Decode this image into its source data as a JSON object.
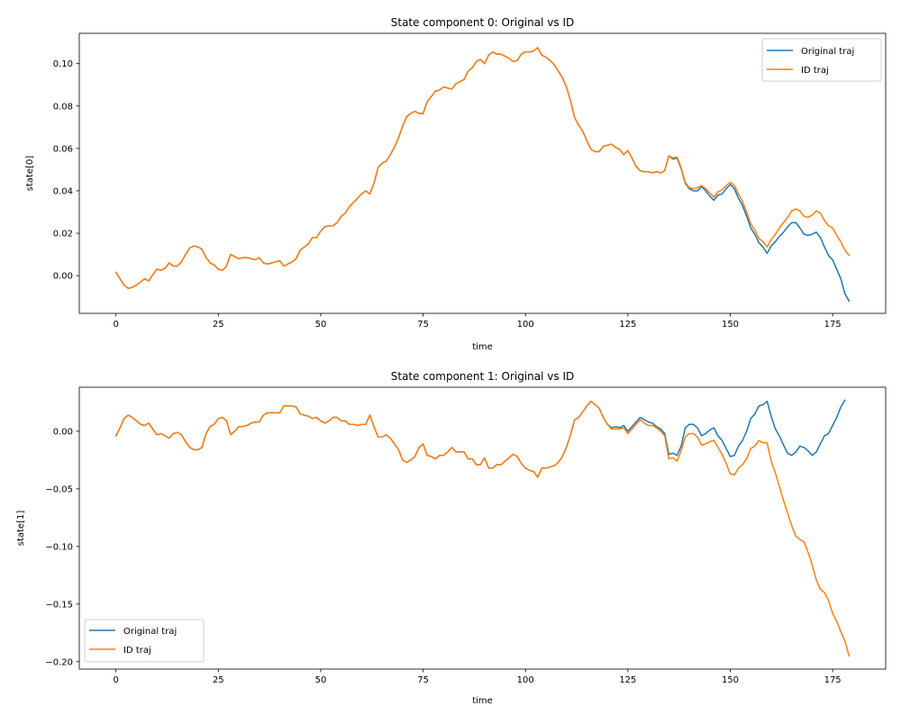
{
  "chart_data": [
    {
      "type": "line",
      "title": "State component 0: Original vs ID",
      "xlabel": "time",
      "ylabel": "state[0]",
      "xlim": [
        -8.95,
        187.95
      ],
      "ylim": [
        -0.0178,
        0.1143
      ],
      "xticks": [
        0,
        25,
        50,
        75,
        100,
        125,
        150,
        175
      ],
      "xtick_labels": [
        "0",
        "25",
        "50",
        "75",
        "100",
        "125",
        "150",
        "175"
      ],
      "yticks": [
        0.0,
        0.02,
        0.04,
        0.06,
        0.08,
        0.1
      ],
      "ytick_labels": [
        "0.00",
        "0.02",
        "0.04",
        "0.06",
        "0.08",
        "0.10"
      ],
      "legend_position": "upper-right",
      "grid": false,
      "x_start": 0,
      "x_step": 1,
      "series": [
        {
          "name": "Original traj",
          "color": "#1f77b4",
          "values": [
            0.0015,
            -0.0015,
            -0.0045,
            -0.006,
            -0.0055,
            -0.0045,
            -0.003,
            -0.0015,
            -0.0025,
            0.0005,
            0.003,
            0.0025,
            0.0035,
            0.006,
            0.0045,
            0.0045,
            0.0065,
            0.01,
            0.013,
            0.014,
            0.0135,
            0.0125,
            0.0085,
            0.006,
            0.005,
            0.003,
            0.0025,
            0.0045,
            0.01,
            0.009,
            0.008,
            0.0085,
            0.0085,
            0.008,
            0.0075,
            0.0085,
            0.006,
            0.0055,
            0.006,
            0.0065,
            0.007,
            0.0045,
            0.0055,
            0.0065,
            0.008,
            0.012,
            0.0135,
            0.015,
            0.018,
            0.018,
            0.021,
            0.023,
            0.0235,
            0.0235,
            0.025,
            0.028,
            0.0295,
            0.0325,
            0.0345,
            0.0365,
            0.0385,
            0.04,
            0.0385,
            0.0435,
            0.051,
            0.053,
            0.054,
            0.057,
            0.0605,
            0.065,
            0.0705,
            0.075,
            0.0765,
            0.0775,
            0.0765,
            0.0765,
            0.082,
            0.0845,
            0.087,
            0.0875,
            0.089,
            0.0885,
            0.088,
            0.0905,
            0.0915,
            0.0925,
            0.0965,
            0.098,
            0.101,
            0.102,
            0.1,
            0.104,
            0.1055,
            0.1045,
            0.1045,
            0.1035,
            0.1025,
            0.101,
            0.1015,
            0.1045,
            0.1055,
            0.1055,
            0.106,
            0.1075,
            0.104,
            0.103,
            0.1015,
            0.0995,
            0.0965,
            0.0935,
            0.089,
            0.0825,
            0.0745,
            0.071,
            0.068,
            0.0635,
            0.0595,
            0.0585,
            0.0585,
            0.061,
            0.0615,
            0.062,
            0.0605,
            0.0595,
            0.057,
            0.059,
            0.0555,
            0.0515,
            0.0495,
            0.049,
            0.049,
            0.0485,
            0.049,
            0.0485,
            0.0495,
            0.0565,
            0.055,
            0.0555,
            0.0505,
            0.0435,
            0.041,
            0.04,
            0.04,
            0.042,
            0.04,
            0.0375,
            0.0355,
            0.038,
            0.0385,
            0.041,
            0.043,
            0.041,
            0.0365,
            0.033,
            0.028,
            0.0225,
            0.0195,
            0.0155,
            0.0135,
            0.0105,
            0.014,
            0.016,
            0.0185,
            0.0205,
            0.023,
            0.025,
            0.025,
            0.0225,
            0.0195,
            0.019,
            0.0195,
            0.0205,
            0.018,
            0.0135,
            0.0095,
            0.0075,
            0.003,
            -0.0015,
            -0.0085,
            -0.012
          ]
        },
        {
          "name": "ID traj",
          "color": "#ff7f0e",
          "values": [
            0.0015,
            -0.0015,
            -0.0045,
            -0.006,
            -0.0055,
            -0.0045,
            -0.003,
            -0.0015,
            -0.0025,
            0.0005,
            0.003,
            0.0025,
            0.0035,
            0.006,
            0.0045,
            0.0045,
            0.0065,
            0.01,
            0.013,
            0.014,
            0.0135,
            0.0125,
            0.0085,
            0.006,
            0.005,
            0.003,
            0.0025,
            0.0045,
            0.01,
            0.009,
            0.008,
            0.0085,
            0.0085,
            0.008,
            0.0075,
            0.0085,
            0.006,
            0.0055,
            0.006,
            0.0065,
            0.007,
            0.0045,
            0.0055,
            0.0065,
            0.008,
            0.012,
            0.0135,
            0.015,
            0.018,
            0.018,
            0.021,
            0.023,
            0.0235,
            0.0235,
            0.025,
            0.028,
            0.0295,
            0.0325,
            0.0345,
            0.0365,
            0.0385,
            0.04,
            0.0385,
            0.0435,
            0.051,
            0.053,
            0.054,
            0.057,
            0.0605,
            0.065,
            0.0705,
            0.075,
            0.0765,
            0.0775,
            0.0765,
            0.0765,
            0.082,
            0.0845,
            0.087,
            0.0875,
            0.089,
            0.0885,
            0.088,
            0.0905,
            0.0915,
            0.0925,
            0.0965,
            0.098,
            0.101,
            0.102,
            0.1,
            0.104,
            0.1055,
            0.1045,
            0.1045,
            0.1035,
            0.1025,
            0.101,
            0.1015,
            0.1045,
            0.1055,
            0.1055,
            0.106,
            0.1075,
            0.104,
            0.103,
            0.1015,
            0.0995,
            0.0965,
            0.0935,
            0.089,
            0.0825,
            0.0745,
            0.071,
            0.068,
            0.0635,
            0.0595,
            0.0585,
            0.0585,
            0.061,
            0.0615,
            0.062,
            0.0605,
            0.0595,
            0.057,
            0.059,
            0.0555,
            0.0515,
            0.0495,
            0.049,
            0.049,
            0.0485,
            0.049,
            0.0485,
            0.0495,
            0.0565,
            0.0555,
            0.056,
            0.051,
            0.044,
            0.0415,
            0.041,
            0.0415,
            0.0425,
            0.041,
            0.039,
            0.037,
            0.0395,
            0.0405,
            0.0425,
            0.044,
            0.0425,
            0.0385,
            0.035,
            0.03,
            0.0245,
            0.0215,
            0.0175,
            0.016,
            0.0135,
            0.017,
            0.0195,
            0.0225,
            0.025,
            0.0275,
            0.0305,
            0.0315,
            0.0305,
            0.028,
            0.0275,
            0.0285,
            0.0305,
            0.0295,
            0.026,
            0.0235,
            0.0225,
            0.019,
            0.016,
            0.012,
            0.0095
          ]
        }
      ]
    },
    {
      "type": "line",
      "title": "State component 1: Original vs ID",
      "xlabel": "time",
      "ylabel": "state[1]",
      "xlim": [
        -8.95,
        187.95
      ],
      "ylim": [
        -0.2064,
        0.0382
      ],
      "xticks": [
        0,
        25,
        50,
        75,
        100,
        125,
        150,
        175
      ],
      "xtick_labels": [
        "0",
        "25",
        "50",
        "75",
        "100",
        "125",
        "150",
        "175"
      ],
      "yticks": [
        -0.2,
        -0.15,
        -0.1,
        -0.05,
        0.0
      ],
      "ytick_labels": [
        "−0.20",
        "−0.15",
        "−0.10",
        "−0.05",
        "0.00"
      ],
      "legend_position": "lower-left",
      "grid": false,
      "x_start": 0,
      "x_step": 1,
      "series": [
        {
          "name": "Original traj",
          "color": "#1f77b4",
          "values": [
            -0.004,
            0.003,
            0.011,
            0.014,
            0.012,
            0.009,
            0.006,
            0.005,
            0.007,
            0.002,
            -0.003,
            -0.002,
            -0.004,
            -0.006,
            -0.002,
            -0.001,
            -0.003,
            -0.009,
            -0.014,
            -0.016,
            -0.016,
            -0.014,
            -0.002,
            0.004,
            0.006,
            0.011,
            0.012,
            0.009,
            -0.003,
            0.0,
            0.004,
            0.004,
            0.005,
            0.007,
            0.008,
            0.008,
            0.014,
            0.016,
            0.016,
            0.016,
            0.016,
            0.022,
            0.022,
            0.022,
            0.021,
            0.015,
            0.014,
            0.013,
            0.011,
            0.012,
            0.009,
            0.007,
            0.009,
            0.012,
            0.012,
            0.009,
            0.009,
            0.006,
            0.006,
            0.005,
            0.006,
            0.006,
            0.014,
            0.004,
            -0.005,
            -0.005,
            -0.003,
            -0.006,
            -0.011,
            -0.016,
            -0.025,
            -0.027,
            -0.025,
            -0.022,
            -0.014,
            -0.011,
            -0.021,
            -0.022,
            -0.024,
            -0.021,
            -0.021,
            -0.018,
            -0.014,
            -0.018,
            -0.018,
            -0.018,
            -0.024,
            -0.024,
            -0.029,
            -0.029,
            -0.023,
            -0.032,
            -0.032,
            -0.029,
            -0.029,
            -0.026,
            -0.023,
            -0.02,
            -0.022,
            -0.028,
            -0.032,
            -0.034,
            -0.035,
            -0.04,
            -0.032,
            -0.032,
            -0.031,
            -0.03,
            -0.027,
            -0.022,
            -0.014,
            -0.003,
            0.01,
            0.012,
            0.017,
            0.022,
            0.026,
            0.023,
            0.02,
            0.012,
            0.006,
            0.003,
            0.004,
            0.003,
            0.005,
            0.0,
            0.004,
            0.008,
            0.012,
            0.01,
            0.008,
            0.007,
            0.004,
            0.002,
            -0.002,
            -0.02,
            -0.019,
            -0.021,
            -0.013,
            0.003,
            0.006,
            0.006,
            0.003,
            -0.004,
            -0.002,
            0.001,
            0.003,
            -0.004,
            -0.008,
            -0.015,
            -0.022,
            -0.021,
            -0.013,
            -0.008,
            0.0,
            0.011,
            0.015,
            0.022,
            0.023,
            0.026,
            0.013,
            0.002,
            -0.004,
            -0.012,
            -0.019,
            -0.021,
            -0.018,
            -0.013,
            -0.014,
            -0.017,
            -0.021,
            -0.018,
            -0.011,
            -0.004,
            -0.002,
            0.005,
            0.012,
            0.021,
            0.027
          ]
        },
        {
          "name": "ID traj",
          "color": "#ff7f0e",
          "values": [
            -0.004,
            0.003,
            0.011,
            0.014,
            0.012,
            0.009,
            0.006,
            0.005,
            0.007,
            0.002,
            -0.003,
            -0.002,
            -0.004,
            -0.006,
            -0.002,
            -0.001,
            -0.003,
            -0.009,
            -0.014,
            -0.016,
            -0.016,
            -0.014,
            -0.002,
            0.004,
            0.006,
            0.011,
            0.012,
            0.009,
            -0.003,
            0.0,
            0.004,
            0.004,
            0.005,
            0.007,
            0.008,
            0.008,
            0.014,
            0.016,
            0.016,
            0.016,
            0.016,
            0.022,
            0.022,
            0.022,
            0.021,
            0.015,
            0.014,
            0.013,
            0.011,
            0.012,
            0.009,
            0.007,
            0.009,
            0.012,
            0.012,
            0.009,
            0.009,
            0.006,
            0.006,
            0.005,
            0.006,
            0.006,
            0.014,
            0.004,
            -0.005,
            -0.005,
            -0.003,
            -0.006,
            -0.011,
            -0.016,
            -0.025,
            -0.027,
            -0.025,
            -0.022,
            -0.014,
            -0.011,
            -0.021,
            -0.022,
            -0.024,
            -0.021,
            -0.021,
            -0.018,
            -0.014,
            -0.018,
            -0.018,
            -0.018,
            -0.024,
            -0.024,
            -0.029,
            -0.029,
            -0.023,
            -0.032,
            -0.032,
            -0.029,
            -0.029,
            -0.026,
            -0.023,
            -0.02,
            -0.022,
            -0.028,
            -0.032,
            -0.034,
            -0.035,
            -0.04,
            -0.032,
            -0.032,
            -0.031,
            -0.03,
            -0.027,
            -0.022,
            -0.014,
            -0.003,
            0.01,
            0.012,
            0.017,
            0.022,
            0.026,
            0.023,
            0.02,
            0.012,
            0.006,
            0.002,
            0.002,
            0.002,
            0.003,
            -0.002,
            0.002,
            0.006,
            0.01,
            0.007,
            0.005,
            0.005,
            0.003,
            0.0,
            -0.004,
            -0.024,
            -0.023,
            -0.026,
            -0.017,
            -0.005,
            -0.002,
            -0.002,
            -0.005,
            -0.012,
            -0.011,
            -0.009,
            -0.008,
            -0.014,
            -0.02,
            -0.028,
            -0.037,
            -0.038,
            -0.032,
            -0.029,
            -0.024,
            -0.015,
            -0.013,
            -0.008,
            -0.01,
            -0.01,
            -0.026,
            -0.036,
            -0.048,
            -0.06,
            -0.071,
            -0.082,
            -0.091,
            -0.094,
            -0.096,
            -0.105,
            -0.116,
            -0.129,
            -0.137,
            -0.14,
            -0.147,
            -0.158,
            -0.165,
            -0.174,
            -0.182,
            -0.195
          ]
        }
      ]
    }
  ]
}
